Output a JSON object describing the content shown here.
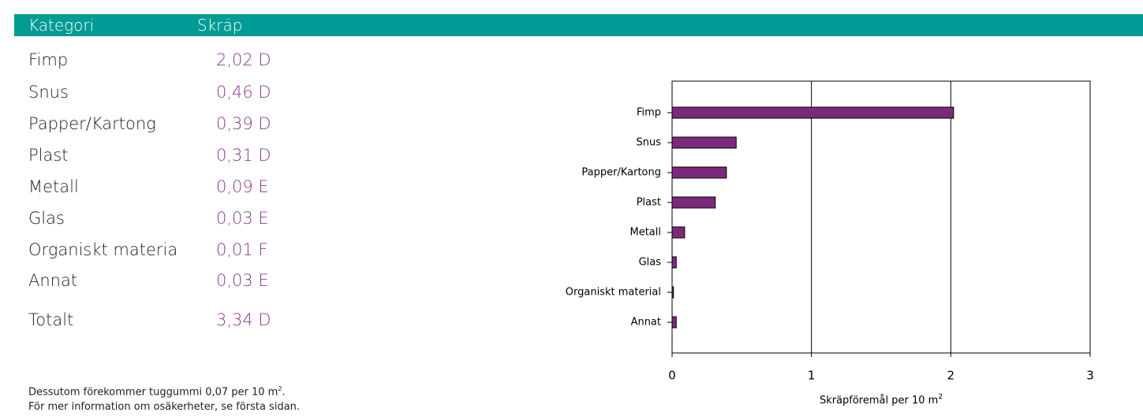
{
  "table": {
    "header": [
      "Kategori",
      "Skräp"
    ],
    "rows": [
      [
        "Fimp",
        "2,02 D"
      ],
      [
        "Snus",
        "0,46 D"
      ],
      [
        "Papper/Kartong",
        "0,39 D"
      ],
      [
        "Plast",
        "0,31 D"
      ],
      [
        "Metall",
        "0,09 E"
      ],
      [
        "Glas",
        "0,03 E"
      ],
      [
        "Organiskt materia",
        "0,01 F"
      ],
      [
        "Annat",
        "0,03 E"
      ]
    ],
    "total": [
      "Totalt",
      "3,34 D"
    ]
  },
  "footnote": [
    {
      "text": "Dessutom förekommer tuggummi  0,07 per 10 m",
      "sup": "2",
      "end": "."
    },
    {
      "text": "För mer information om osäkerheter, se första sidan."
    }
  ],
  "chart_data": {
    "type": "barh",
    "categories": [
      "Fimp",
      "Snus",
      "Papper/Kartong",
      "Plast",
      "Metall",
      "Glas",
      "Organiskt material",
      "Annat"
    ],
    "values": [
      2.02,
      0.46,
      0.39,
      0.31,
      0.09,
      0.03,
      0.01,
      0.03
    ],
    "color": "#7b2a7b",
    "xlim": [
      0,
      3
    ],
    "xticks": [
      0,
      1,
      2,
      3
    ],
    "grid": true,
    "xlabel": {
      "text": "Skräpföremål per 10 m",
      "sup": "2"
    }
  }
}
